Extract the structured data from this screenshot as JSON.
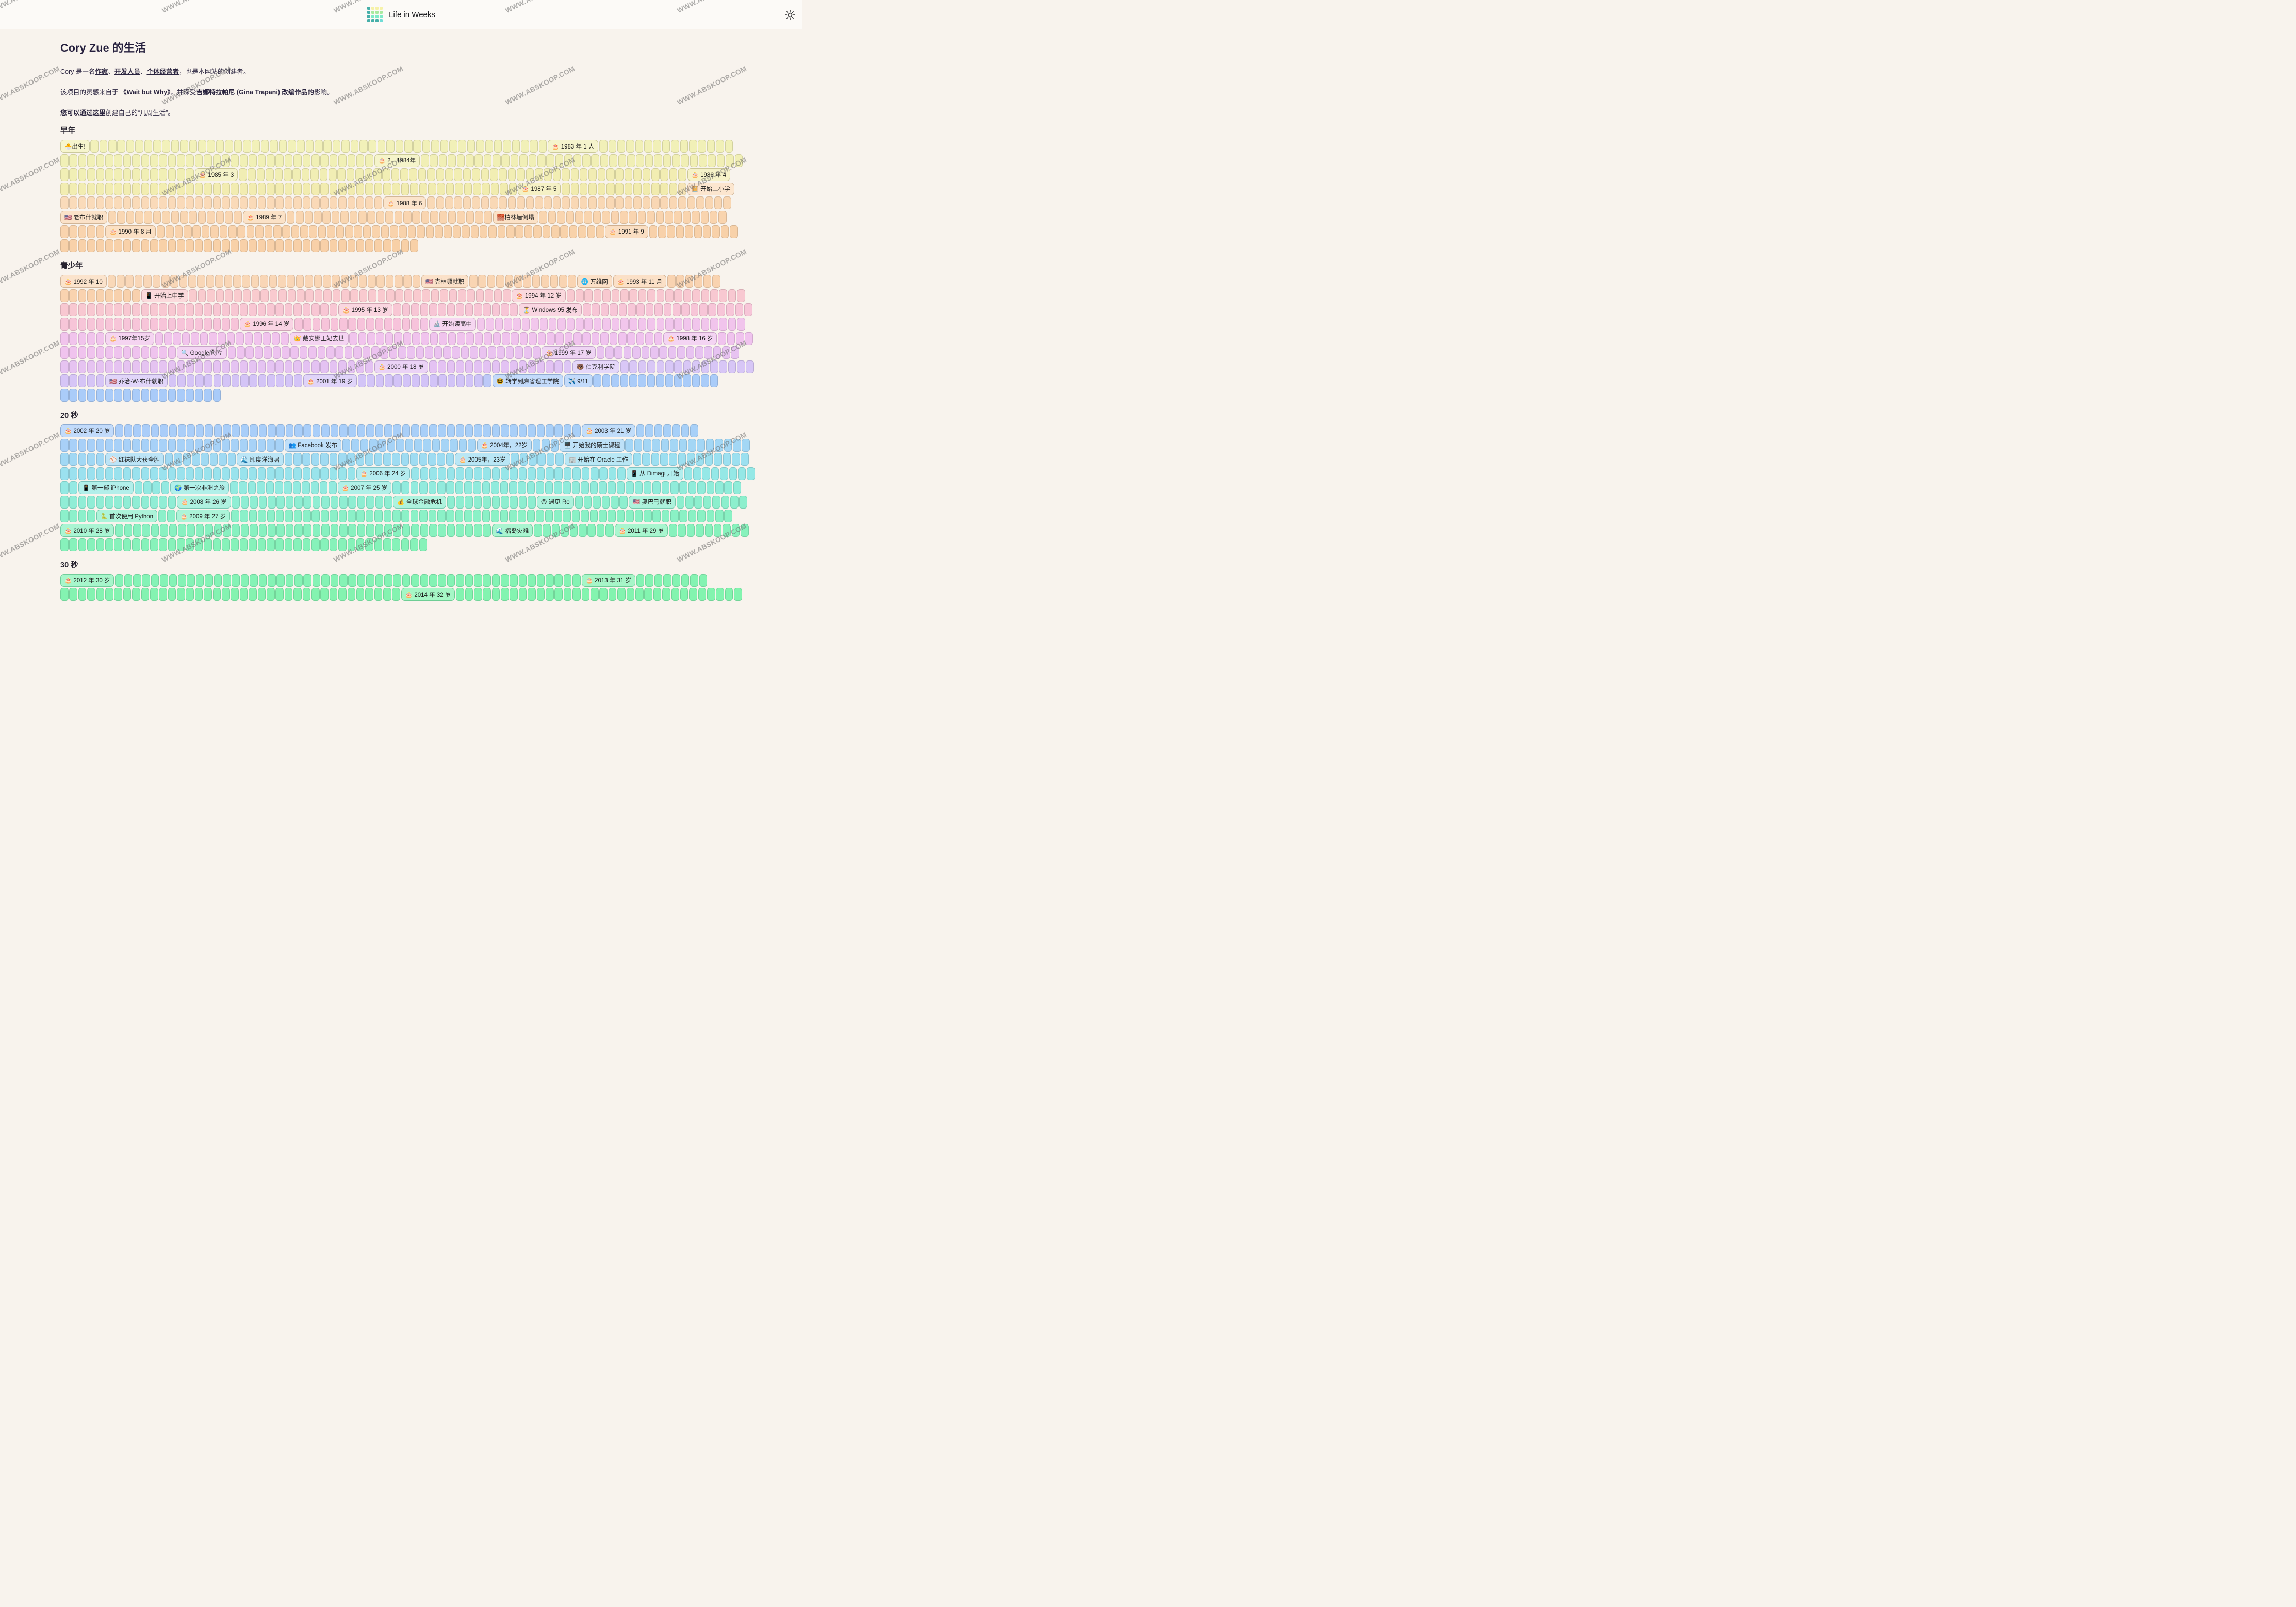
{
  "header": {
    "app_title": "Life in Weeks",
    "logo_palette": {
      "teal": "#46AFA9",
      "yellow": "#F6F2A9",
      "green": "#A9E99F",
      "mint": "#7FEAC8",
      "cyan": "#6FDCD6"
    },
    "logo_grid": [
      "teal",
      "yellow",
      "yellow",
      "yellow",
      "teal",
      "green",
      "green",
      "green",
      "teal",
      "mint",
      "mint",
      "mint",
      "teal",
      "teal",
      "teal",
      "cyan"
    ],
    "theme_icon": "sun-icon"
  },
  "page": {
    "title": "Cory Zue 的生活"
  },
  "intro": {
    "p1": [
      [
        "t",
        "Cory 是一名"
      ],
      [
        "a",
        "作家"
      ],
      [
        "t",
        "、"
      ],
      [
        "a",
        "开发人员"
      ],
      [
        "t",
        "、"
      ],
      [
        "a",
        "个体经营者"
      ],
      [
        "t",
        "，也是本网站的创建者。"
      ]
    ],
    "p2": [
      [
        "t",
        "该项目的灵感来自于 "
      ],
      [
        "a",
        "《Wait but Why》"
      ],
      [
        "t",
        "，并深受"
      ],
      [
        "a",
        "吉娜特拉帕尼 (Gina Trapani) 改编作品的"
      ],
      [
        "t",
        "影响。"
      ]
    ],
    "p3": [
      [
        "a",
        "您可以通过这里"
      ],
      [
        "t",
        "创建自己的“几周生活”。"
      ]
    ]
  },
  "watermark": {
    "text": "WWW.ABSKOOP.COM"
  },
  "sections": [
    {
      "title": "早年",
      "lines": [
        {
          "stops": [
            [
              0,
              "#F2F1BA"
            ],
            [
              1,
              "#F1F0B7"
            ]
          ],
          "items": [
            [
              "l",
              "🐣出生!",
              4
            ],
            [
              "c",
              51
            ],
            [
              "l",
              "🎂 1983 年 1 人",
              6
            ],
            [
              "c",
              15
            ]
          ]
        },
        {
          "stops": [
            [
              0,
              "#F1F0B7"
            ],
            [
              1,
              "#F1EFB5"
            ]
          ],
          "items": [
            [
              "c",
              35
            ],
            [
              "l",
              "🎂 2，1984年",
              5
            ],
            [
              "c",
              36
            ]
          ]
        },
        {
          "stops": [
            [
              0,
              "#F1EFB5"
            ],
            [
              1,
              "#F2EDB2"
            ]
          ],
          "items": [
            [
              "c",
              15
            ],
            [
              "l",
              "🎂 1985 年 3",
              5
            ],
            [
              "c",
              50
            ],
            [
              "l",
              "🎂 1986 年 4",
              5
            ]
          ]
        },
        {
          "stops": [
            [
              0,
              "#F2EDB2"
            ],
            [
              0.9,
              "#F1EBAE"
            ],
            [
              0.93,
              "#FBDDBE"
            ],
            [
              1,
              "#FADBBA"
            ]
          ],
          "items": [
            [
              "c",
              51
            ],
            [
              "l",
              "🎂 1987 年 5",
              5
            ],
            [
              "c",
              14
            ],
            [
              "l",
              "📔 开始上小学",
              6
            ]
          ]
        },
        {
          "stops": [
            [
              0,
              "#FADBBA"
            ],
            [
              1,
              "#F9D7B3"
            ]
          ],
          "items": [
            [
              "c",
              36
            ],
            [
              "l",
              "🎂 1988 年 6",
              5
            ],
            [
              "c",
              34
            ]
          ]
        },
        {
          "stops": [
            [
              0,
              "#F9D7B3"
            ],
            [
              1,
              "#F9D4AE"
            ]
          ],
          "items": [
            [
              "l",
              "🇺🇸 老布什就职",
              6
            ],
            [
              "c",
              15
            ],
            [
              "l",
              "🎂 1989 年 7",
              5
            ],
            [
              "c",
              23
            ],
            [
              "l",
              "🧱柏林墙倒塌",
              6
            ],
            [
              "c",
              21
            ]
          ]
        },
        {
          "stops": [
            [
              0,
              "#F9D4AE"
            ],
            [
              1,
              "#F8D1A9"
            ]
          ],
          "items": [
            [
              "c",
              5
            ],
            [
              "l",
              "🎂 1990 年 8 月",
              6
            ],
            [
              "c",
              50
            ],
            [
              "l",
              "🎂 1991 年 9",
              5
            ],
            [
              "c",
              10
            ]
          ]
        },
        {
          "stops": [
            [
              0,
              "#F8D1A9"
            ],
            [
              1,
              "#F8D0A7"
            ]
          ],
          "items": [
            [
              "c",
              40
            ]
          ]
        }
      ]
    },
    {
      "title": "青少年",
      "lines": [
        {
          "stops": [
            [
              0,
              "#F9D8B9"
            ],
            [
              1,
              "#F9D3B0"
            ]
          ],
          "items": [
            [
              "l",
              "🎂 1992 年 10",
              6
            ],
            [
              "c",
              35
            ],
            [
              "l",
              "🇺🇸 克林顿就职",
              6
            ],
            [
              "c",
              12
            ],
            [
              "l",
              "🌐 万维网",
              4
            ],
            [
              "l",
              "🎂 1993 年 11 月",
              6
            ],
            [
              "c",
              6
            ]
          ]
        },
        {
          "stops": [
            [
              0,
              "#F9D3B0"
            ],
            [
              0.11,
              "#F8D1AC"
            ],
            [
              0.14,
              "#F9CBCE"
            ],
            [
              1,
              "#F8C8D1"
            ]
          ],
          "items": [
            [
              "c",
              9
            ],
            [
              "l",
              "📱 开始上中学",
              5
            ],
            [
              "c",
              36
            ],
            [
              "l",
              "🎂 1994 年 12 岁",
              6
            ],
            [
              "c",
              20
            ]
          ]
        },
        {
          "stops": [
            [
              0,
              "#F8C8D1"
            ],
            [
              1,
              "#F7C5D8"
            ]
          ],
          "items": [
            [
              "c",
              31
            ],
            [
              "l",
              "🎂 1995 年 13 岁",
              6
            ],
            [
              "c",
              14
            ],
            [
              "l",
              "⏳ Windows 95 发布",
              6
            ],
            [
              "c",
              19
            ]
          ]
        },
        {
          "stops": [
            [
              0,
              "#F7C5D8"
            ],
            [
              0.52,
              "#F7C3DB"
            ],
            [
              0.55,
              "#F3C8EC"
            ],
            [
              1,
              "#F1C4EC"
            ]
          ],
          "items": [
            [
              "c",
              20
            ],
            [
              "l",
              "🎂 1996 年 14 岁",
              6
            ],
            [
              "c",
              15
            ],
            [
              "l",
              "🔬 开始读高中",
              5
            ],
            [
              "c",
              30
            ]
          ]
        },
        {
          "stops": [
            [
              0,
              "#F1C4EC"
            ],
            [
              1,
              "#F0C3EE"
            ]
          ],
          "items": [
            [
              "c",
              5
            ],
            [
              "l",
              "🎂 1997年15岁",
              5
            ],
            [
              "c",
              15
            ],
            [
              "l",
              "👑 戴安娜王妃去世",
              6
            ],
            [
              "c",
              35
            ],
            [
              "l",
              "🎂 1998 年 16 岁",
              6
            ],
            [
              "c",
              4
            ]
          ]
        },
        {
          "stops": [
            [
              0,
              "#F0C3EE"
            ],
            [
              1,
              "#E7C3F1"
            ]
          ],
          "items": [
            [
              "c",
              13
            ],
            [
              "l",
              "🔍 Google 创立",
              6
            ],
            [
              "c",
              35
            ],
            [
              "l",
              "🎂 1999 年 17 岁",
              6
            ],
            [
              "c",
              16
            ]
          ]
        },
        {
          "stops": [
            [
              0,
              "#E6C3F1"
            ],
            [
              0.71,
              "#E3C2F3"
            ],
            [
              0.745,
              "#DAC8F6"
            ],
            [
              1,
              "#D7C6F6"
            ]
          ],
          "items": [
            [
              "c",
              35
            ],
            [
              "l",
              "🎂 2000 年 18 岁",
              6
            ],
            [
              "c",
              16
            ],
            [
              "l",
              "🐻 伯克利学院",
              5
            ],
            [
              "c",
              15
            ]
          ]
        },
        {
          "stops": [
            [
              0,
              "#D6C5F6"
            ],
            [
              0.62,
              "#D2C3F7"
            ],
            [
              0.65,
              "#ADCDF9"
            ],
            [
              1,
              "#AACCF9"
            ]
          ],
          "items": [
            [
              "c",
              5
            ],
            [
              "l",
              "🇺🇸 乔治·W·布什就职",
              7
            ],
            [
              "c",
              15
            ],
            [
              "l",
              "🎂 2001 年 19 岁",
              5
            ],
            [
              "c",
              15
            ],
            [
              "l",
              "🤓 转学到麻省理工学院",
              9
            ],
            [
              "l",
              "✈️ 9/11",
              3
            ],
            [
              "c",
              14
            ]
          ]
        },
        {
          "stops": [
            [
              0,
              "#AACCF9"
            ],
            [
              1,
              "#A9CBF9"
            ]
          ],
          "items": [
            [
              "c",
              18
            ]
          ]
        }
      ]
    },
    {
      "title": "20 秒",
      "lines": [
        {
          "stops": [
            [
              0,
              "#AACDF9"
            ],
            [
              1,
              "#A8D0F8"
            ]
          ],
          "items": [
            [
              "l",
              "🎂 2002 年 20 岁",
              6
            ],
            [
              "c",
              52
            ],
            [
              "l",
              "🎂 2003 年 21 岁",
              6
            ],
            [
              "c",
              7
            ]
          ]
        },
        {
          "stops": [
            [
              0,
              "#A8D0F8"
            ],
            [
              1,
              "#A3D7F5"
            ]
          ],
          "items": [
            [
              "c",
              25
            ],
            [
              "l",
              "👥 Facebook 发布",
              6
            ],
            [
              "c",
              15
            ],
            [
              "l",
              "🎂 2004年，22岁",
              6
            ],
            [
              "c",
              3
            ],
            [
              "l",
              "🖥️ 开始我的硕士课程",
              7
            ],
            [
              "c",
              14
            ]
          ]
        },
        {
          "stops": [
            [
              0,
              "#A2D8F4"
            ],
            [
              1,
              "#9CE0F0"
            ]
          ],
          "items": [
            [
              "c",
              5
            ],
            [
              "l",
              "⚾ 红袜队大获全胜",
              7
            ],
            [
              "c",
              8
            ],
            [
              "l",
              "🌊 印度洋海啸",
              5
            ],
            [
              "c",
              19
            ],
            [
              "l",
              "🎂 2005年，23岁",
              6
            ],
            [
              "c",
              6
            ],
            [
              "l",
              "🏢 开始在 Oracle 工作",
              7
            ],
            [
              "c",
              13
            ]
          ]
        },
        {
          "stops": [
            [
              0,
              "#9BE1EF"
            ],
            [
              1,
              "#95E8E6"
            ]
          ],
          "items": [
            [
              "c",
              33
            ],
            [
              "l",
              "🎂 2006 年 24 岁",
              6
            ],
            [
              "c",
              24
            ],
            [
              "l",
              "📱 从 Dimagi 开始",
              6
            ],
            [
              "c",
              8
            ]
          ]
        },
        {
          "stops": [
            [
              0,
              "#94E9E3"
            ],
            [
              1,
              "#90ECD9"
            ]
          ],
          "items": [
            [
              "c",
              2
            ],
            [
              "l",
              "📱 第一部 iPhone",
              6
            ],
            [
              "c",
              4
            ],
            [
              "l",
              "🌍 第一次非洲之旅",
              7
            ],
            [
              "c",
              12
            ],
            [
              "l",
              "🎂 2007 年 25 岁",
              6
            ],
            [
              "c",
              39
            ]
          ]
        },
        {
          "stops": [
            [
              0,
              "#90EDD6"
            ],
            [
              1,
              "#8DEFCD"
            ]
          ],
          "items": [
            [
              "c",
              13
            ],
            [
              "l",
              "🎂 2008 年 26 岁",
              6
            ],
            [
              "c",
              18
            ],
            [
              "l",
              "💰 全球金融危机",
              5
            ],
            [
              "c",
              10
            ],
            [
              "l",
              "😍 遇见 Ro",
              4
            ],
            [
              "c",
              6
            ],
            [
              "l",
              "🇺🇸 奥巴马就职",
              6
            ],
            [
              "c",
              8
            ]
          ]
        },
        {
          "stops": [
            [
              0,
              "#8CF0CB"
            ],
            [
              1,
              "#8AF1C4"
            ]
          ],
          "items": [
            [
              "c",
              4
            ],
            [
              "l",
              "🐍 首次使用 Python",
              7
            ],
            [
              "c",
              2
            ],
            [
              "l",
              "🎂 2009 年 27 岁",
              6
            ],
            [
              "c",
              56
            ]
          ]
        },
        {
          "stops": [
            [
              0,
              "#89F1C2"
            ],
            [
              1,
              "#87F2BC"
            ]
          ],
          "items": [
            [
              "l",
              "🎂 2010 年 28 岁",
              6
            ],
            [
              "c",
              42
            ],
            [
              "l",
              "🌊 福岛灾难",
              5
            ],
            [
              "c",
              9
            ],
            [
              "l",
              "🎂 2011 年 29 岁",
              6
            ],
            [
              "c",
              9
            ]
          ]
        },
        {
          "stops": [
            [
              0,
              "#87F2BB"
            ],
            [
              1,
              "#86F2B9"
            ]
          ],
          "items": [
            [
              "c",
              41
            ]
          ]
        }
      ]
    },
    {
      "title": "30 秒",
      "lines": [
        {
          "stops": [
            [
              0,
              "#85F3B7"
            ],
            [
              1,
              "#84F3B2"
            ]
          ],
          "items": [
            [
              "l",
              "🎂 2012 年 30 岁",
              6
            ],
            [
              "c",
              52
            ],
            [
              "l",
              "🎂 2013 年 31 岁",
              6
            ],
            [
              "c",
              8
            ]
          ]
        },
        {
          "stops": [
            [
              0,
              "#84F3B1"
            ],
            [
              1,
              "#83F4AF"
            ]
          ],
          "items": [
            [
              "c",
              38
            ],
            [
              "l",
              "🎂 2014 年 32 岁",
              6
            ],
            [
              "c",
              32
            ]
          ]
        }
      ]
    }
  ]
}
